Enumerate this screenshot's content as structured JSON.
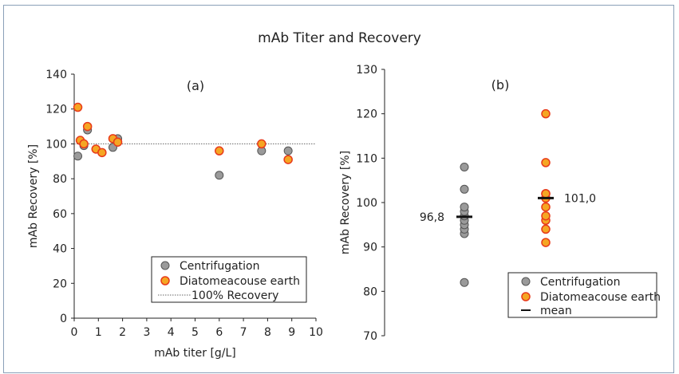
{
  "title": "mAb Titer and Recovery",
  "colors": {
    "centrifugation_fill": "#9a9a9a",
    "diatomeacouse_fill": "#f5a623",
    "diatomeacouse_stroke": "#e83a1a",
    "reference_line": "#666666"
  },
  "chart_data": [
    {
      "type": "scatter",
      "panel_label": "(a)",
      "xlabel": "mAb titer [g/L]",
      "ylabel": "mAb Recovery [%]",
      "xlim": [
        0,
        10
      ],
      "ylim": [
        0,
        140
      ],
      "xticks": [
        0,
        1,
        2,
        3,
        4,
        5,
        6,
        7,
        8,
        9,
        10
      ],
      "yticks": [
        0,
        20,
        40,
        60,
        80,
        100,
        120,
        140
      ],
      "reference_line": {
        "y": 100,
        "label": "100% Recovery"
      },
      "legend_position": "bottom-right",
      "series": [
        {
          "name": "Centrifugation",
          "points": [
            [
              0.15,
              93
            ],
            [
              0.4,
              99
            ],
            [
              0.55,
              108
            ],
            [
              1.6,
              98
            ],
            [
              1.8,
              103
            ],
            [
              6.0,
              82
            ],
            [
              7.75,
              96
            ],
            [
              8.85,
              96
            ]
          ]
        },
        {
          "name": "Diatomeacouse earth",
          "points": [
            [
              0.15,
              121
            ],
            [
              0.25,
              102
            ],
            [
              0.4,
              100
            ],
            [
              0.55,
              110
            ],
            [
              0.9,
              97
            ],
            [
              1.15,
              95
            ],
            [
              1.6,
              103
            ],
            [
              1.8,
              101
            ],
            [
              6.0,
              96
            ],
            [
              7.75,
              100
            ],
            [
              8.85,
              91
            ]
          ]
        }
      ]
    },
    {
      "type": "scatter",
      "panel_label": "(b)",
      "ylabel": "mAb Recovery [%]",
      "ylim": [
        70,
        130
      ],
      "yticks": [
        70,
        80,
        90,
        100,
        110,
        120,
        130
      ],
      "legend_position": "bottom-right",
      "series": [
        {
          "name": "Centrifugation",
          "values": [
            82,
            93,
            94,
            95,
            96,
            97,
            98,
            99,
            103,
            108
          ],
          "mean": 96.8,
          "mean_label": "96,8"
        },
        {
          "name": "Diatomeacouse earth",
          "values": [
            91,
            94,
            96,
            97,
            99,
            101,
            102,
            102,
            109,
            120
          ],
          "mean": 101.0,
          "mean_label": "101,0"
        }
      ],
      "mean_legend": "mean"
    }
  ]
}
